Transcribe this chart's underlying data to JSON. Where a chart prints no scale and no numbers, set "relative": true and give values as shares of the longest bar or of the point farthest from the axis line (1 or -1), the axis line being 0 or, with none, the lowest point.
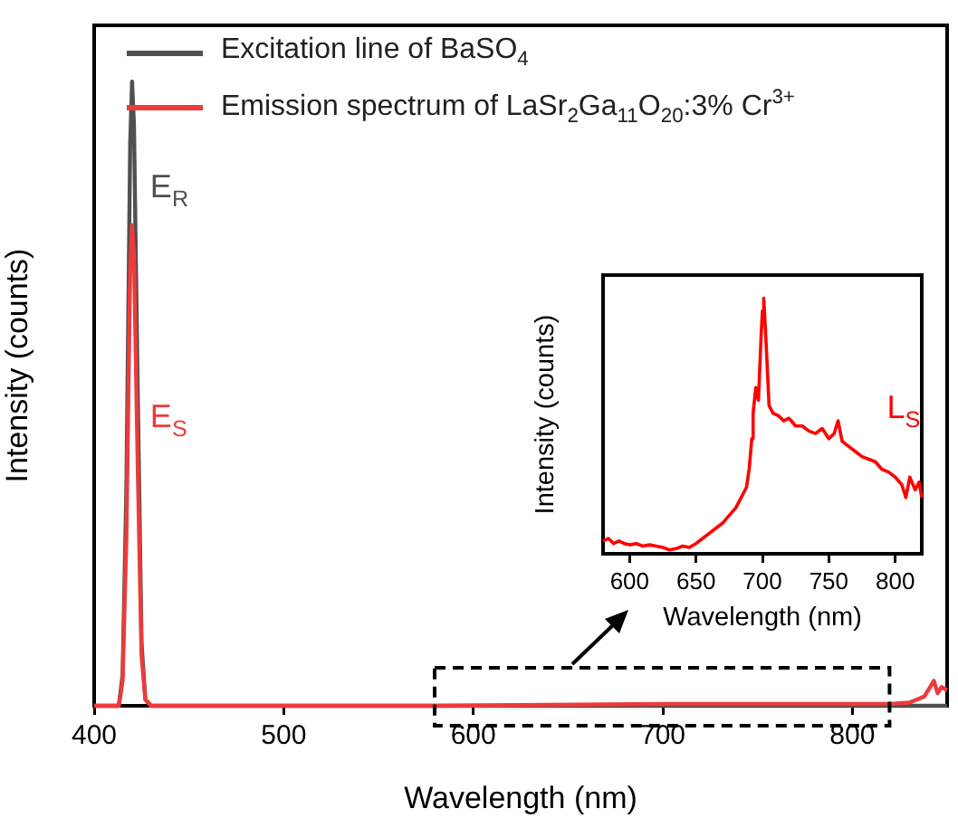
{
  "chart_data": [
    {
      "type": "line",
      "xlabel": "Wavelength (nm)",
      "ylabel": "Intensity (counts)",
      "relative": true,
      "xlim": [
        400,
        850
      ],
      "xticks": [
        400,
        500,
        600,
        700,
        800
      ],
      "legend": "top left",
      "grid": false,
      "marker": "none",
      "line_style": "solid",
      "series": [
        {
          "name": "Excitation line of BaSO$_{4}$",
          "color": "#505050",
          "x": [
            400,
            410,
            413,
            415,
            417,
            419,
            420,
            421,
            423,
            425,
            427,
            430,
            450,
            600,
            850
          ],
          "values": [
            0,
            0,
            0,
            0.05,
            0.35,
            0.9,
            1,
            0.93,
            0.5,
            0.1,
            0.01,
            0,
            0,
            0,
            0
          ]
        },
        {
          "name": "Emission spectrum of LaSr$_{2}$Ga$_{11}$O$_{20}$:3% Cr$^{3+}$",
          "color": "#ee3a3a",
          "x": [
            400,
            410,
            413,
            415,
            417,
            419,
            420,
            421,
            423,
            425,
            427,
            430,
            450,
            580,
            700,
            820,
            830,
            838,
            841,
            843,
            845,
            847,
            850
          ],
          "values": [
            0,
            0,
            0,
            0.04,
            0.27,
            0.7,
            0.77,
            0.72,
            0.38,
            0.08,
            0.01,
            0,
            0,
            0,
            0.003,
            0.003,
            0.005,
            0.015,
            0.03,
            0.04,
            0.02,
            0.03,
            0.025
          ]
        }
      ],
      "annotations": [
        "E$_{R}$",
        "E$_{S}$"
      ]
    },
    {
      "type": "line",
      "xlabel": "Wavelength (nm)",
      "ylabel": "Intensity (counts)",
      "relative": true,
      "xlim": [
        580,
        820
      ],
      "xticks": [
        600,
        650,
        700,
        750,
        800
      ],
      "grid": false,
      "marker": "none",
      "line_style": "solid",
      "series": [
        {
          "color": "#ff0000",
          "x": [
            580,
            584,
            588,
            592,
            596,
            600,
            605,
            610,
            615,
            620,
            625,
            630,
            635,
            640,
            645,
            650,
            655,
            660,
            665,
            670,
            675,
            680,
            684,
            688,
            690,
            692,
            693,
            695,
            697,
            699,
            700,
            701,
            702,
            703,
            705,
            708,
            712,
            716,
            720,
            725,
            730,
            735,
            740,
            745,
            750,
            754,
            757,
            760,
            765,
            770,
            775,
            780,
            785,
            790,
            795,
            800,
            805,
            808,
            811,
            815,
            818,
            820
          ],
          "values": [
            0.05,
            0.06,
            0.04,
            0.05,
            0.04,
            0.035,
            0.04,
            0.03,
            0.035,
            0.03,
            0.025,
            0.015,
            0.02,
            0.03,
            0.025,
            0.04,
            0.06,
            0.08,
            0.1,
            0.12,
            0.15,
            0.18,
            0.22,
            0.26,
            0.33,
            0.45,
            0.55,
            0.65,
            0.6,
            0.85,
            0.95,
            1.0,
            0.9,
            0.8,
            0.58,
            0.55,
            0.54,
            0.52,
            0.53,
            0.5,
            0.5,
            0.48,
            0.47,
            0.49,
            0.45,
            0.47,
            0.52,
            0.44,
            0.42,
            0.4,
            0.38,
            0.37,
            0.36,
            0.33,
            0.32,
            0.3,
            0.27,
            0.22,
            0.3,
            0.25,
            0.28,
            0.22
          ]
        }
      ],
      "annotations": [
        "L$_{S}$"
      ]
    }
  ]
}
